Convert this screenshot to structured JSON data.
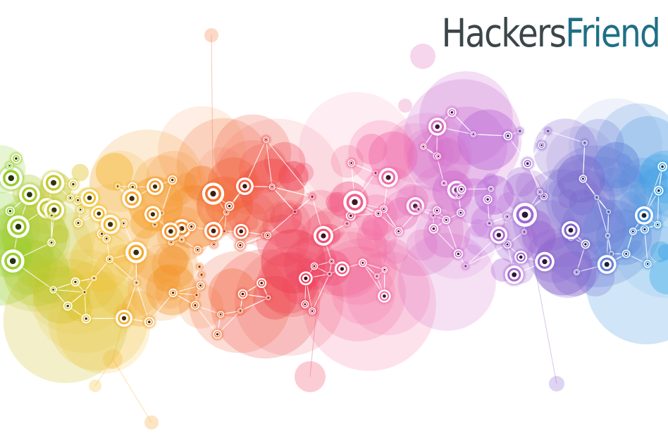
{
  "logo": {
    "part_1": "Hackers",
    "part_2": "Friend",
    "color_part_1": "#3b4649",
    "color_part_2": "#1e6f86"
  },
  "artwork": {
    "subject": "network-graph",
    "palette": [
      "#8ccf2e",
      "#f2c230",
      "#f5872a",
      "#ee3b4e",
      "#f46aa6",
      "#c169d8",
      "#7f63cc",
      "#39a9e8"
    ]
  }
}
